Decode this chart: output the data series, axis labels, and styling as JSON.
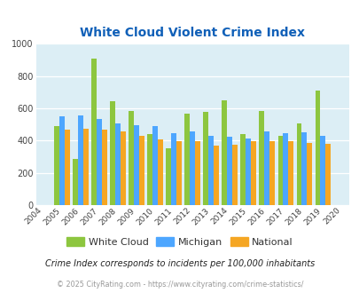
{
  "title": "White Cloud Violent Crime Index",
  "years": [
    2004,
    2005,
    2006,
    2007,
    2008,
    2009,
    2010,
    2011,
    2012,
    2013,
    2014,
    2015,
    2016,
    2017,
    2018,
    2019,
    2020
  ],
  "white_cloud": [
    null,
    490,
    285,
    910,
    645,
    585,
    440,
    355,
    570,
    580,
    648,
    440,
    585,
    430,
    505,
    710,
    null
  ],
  "michigan": [
    null,
    553,
    558,
    535,
    505,
    495,
    490,
    445,
    455,
    430,
    425,
    415,
    455,
    447,
    450,
    430,
    null
  ],
  "national": [
    null,
    469,
    474,
    469,
    458,
    432,
    405,
    394,
    396,
    370,
    376,
    396,
    397,
    397,
    383,
    382,
    null
  ],
  "white_cloud_color": "#8dc63f",
  "michigan_color": "#4da6ff",
  "national_color": "#f5a623",
  "bg_color": "#dceef5",
  "title_color": "#1060b8",
  "footer_color": "#999999",
  "note_color": "#222222",
  "ylim": [
    0,
    1000
  ],
  "yticks": [
    0,
    200,
    400,
    600,
    800,
    1000
  ],
  "legend_labels": [
    "White Cloud",
    "Michigan",
    "National"
  ],
  "note_text": "Crime Index corresponds to incidents per 100,000 inhabitants",
  "footer_text": "© 2025 CityRating.com - https://www.cityrating.com/crime-statistics/"
}
